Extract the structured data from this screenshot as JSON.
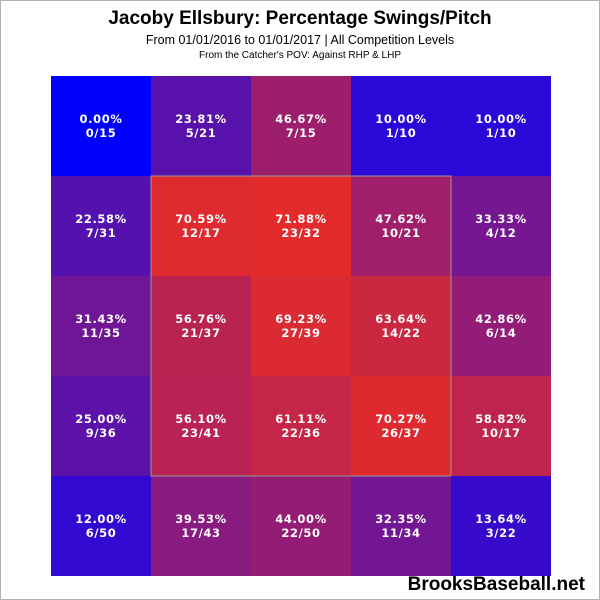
{
  "header": {
    "title": "Jacoby Ellsbury: Percentage Swings/Pitch",
    "subtitle": "From 01/01/2016 to 01/01/2017 | All Competition Levels",
    "subtitle2": "From the Catcher's POV:  Against RHP & LHP"
  },
  "watermark": "BrooksBaseball.net",
  "colors": {
    "low": "#0000ff",
    "high": "#e32b2b",
    "strike_zone_border": "#999999",
    "cell_text": "#ffffff"
  },
  "chart_data": {
    "type": "heatmap",
    "rows": 5,
    "cols": 5,
    "strike_zone": {
      "row_start": 1,
      "row_end": 3,
      "col_start": 1,
      "col_end": 3
    },
    "cells": [
      [
        {
          "pct": 0.0,
          "label": "0.00%",
          "count": "0/15"
        },
        {
          "pct": 23.81,
          "label": "23.81%",
          "count": "5/21"
        },
        {
          "pct": 46.67,
          "label": "46.67%",
          "count": "7/15"
        },
        {
          "pct": 10.0,
          "label": "10.00%",
          "count": "1/10"
        },
        {
          "pct": 10.0,
          "label": "10.00%",
          "count": "1/10"
        }
      ],
      [
        {
          "pct": 22.58,
          "label": "22.58%",
          "count": "7/31"
        },
        {
          "pct": 70.59,
          "label": "70.59%",
          "count": "12/17"
        },
        {
          "pct": 71.88,
          "label": "71.88%",
          "count": "23/32"
        },
        {
          "pct": 47.62,
          "label": "47.62%",
          "count": "10/21"
        },
        {
          "pct": 33.33,
          "label": "33.33%",
          "count": "4/12"
        }
      ],
      [
        {
          "pct": 31.43,
          "label": "31.43%",
          "count": "11/35"
        },
        {
          "pct": 56.76,
          "label": "56.76%",
          "count": "21/37"
        },
        {
          "pct": 69.23,
          "label": "69.23%",
          "count": "27/39"
        },
        {
          "pct": 63.64,
          "label": "63.64%",
          "count": "14/22"
        },
        {
          "pct": 42.86,
          "label": "42.86%",
          "count": "6/14"
        }
      ],
      [
        {
          "pct": 25.0,
          "label": "25.00%",
          "count": "9/36"
        },
        {
          "pct": 56.1,
          "label": "56.10%",
          "count": "23/41"
        },
        {
          "pct": 61.11,
          "label": "61.11%",
          "count": "22/36"
        },
        {
          "pct": 70.27,
          "label": "70.27%",
          "count": "26/37"
        },
        {
          "pct": 58.82,
          "label": "58.82%",
          "count": "10/17"
        }
      ],
      [
        {
          "pct": 12.0,
          "label": "12.00%",
          "count": "6/50"
        },
        {
          "pct": 39.53,
          "label": "39.53%",
          "count": "17/43"
        },
        {
          "pct": 44.0,
          "label": "44.00%",
          "count": "22/50"
        },
        {
          "pct": 32.35,
          "label": "32.35%",
          "count": "11/34"
        },
        {
          "pct": 13.64,
          "label": "13.64%",
          "count": "3/22"
        }
      ]
    ]
  }
}
